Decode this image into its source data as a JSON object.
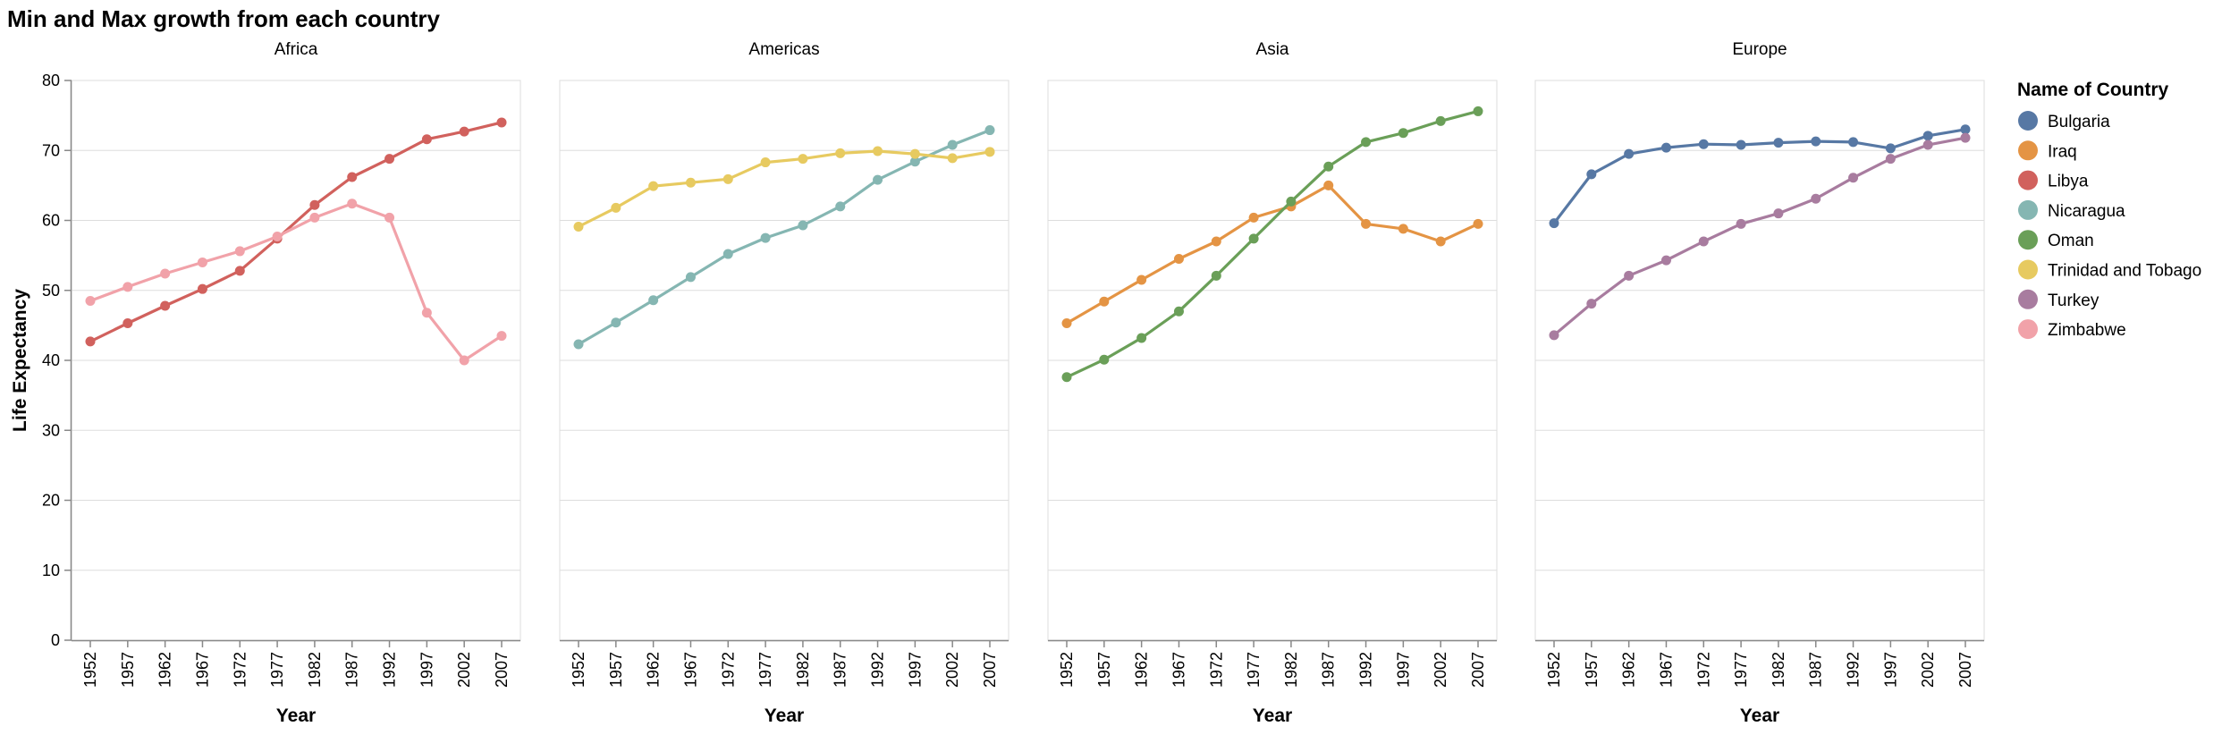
{
  "chart_data": {
    "type": "line",
    "title": "Min and Max growth from each country",
    "xlabel": "Year",
    "ylabel": "Life Expectancy",
    "ylim": [
      0,
      80
    ],
    "yticks": [
      "0",
      "10",
      "20",
      "30",
      "40",
      "50",
      "60",
      "70",
      "80"
    ],
    "x": [
      "1952",
      "1957",
      "1962",
      "1967",
      "1972",
      "1977",
      "1982",
      "1987",
      "1992",
      "1997",
      "2002",
      "2007"
    ],
    "grid": true,
    "legend": {
      "title": "Name of Country",
      "position": "right",
      "items": [
        {
          "name": "Bulgaria",
          "color": "#5778a4"
        },
        {
          "name": "Iraq",
          "color": "#e49444"
        },
        {
          "name": "Libya",
          "color": "#d1615d"
        },
        {
          "name": "Nicaragua",
          "color": "#85b6b2"
        },
        {
          "name": "Oman",
          "color": "#6a9f58"
        },
        {
          "name": "Trinidad and Tobago",
          "color": "#e7ca60"
        },
        {
          "name": "Turkey",
          "color": "#a87c9f"
        },
        {
          "name": "Zimbabwe",
          "color": "#f1a2a9"
        }
      ]
    },
    "facets": [
      {
        "name": "Africa",
        "series": [
          {
            "name": "Libya",
            "color": "#d1615d",
            "values": [
              42.7,
              45.3,
              47.8,
              50.2,
              52.8,
              57.4,
              62.2,
              66.2,
              68.8,
              71.6,
              72.7,
              74.0
            ]
          },
          {
            "name": "Zimbabwe",
            "color": "#f1a2a9",
            "values": [
              48.5,
              50.5,
              52.4,
              54.0,
              55.6,
              57.7,
              60.4,
              62.4,
              60.4,
              46.8,
              40.0,
              43.5
            ]
          }
        ]
      },
      {
        "name": "Americas",
        "series": [
          {
            "name": "Nicaragua",
            "color": "#85b6b2",
            "values": [
              42.3,
              45.4,
              48.6,
              51.9,
              55.2,
              57.5,
              59.3,
              62.0,
              65.8,
              68.4,
              70.8,
              72.9
            ]
          },
          {
            "name": "Trinidad and Tobago",
            "color": "#e7ca60",
            "values": [
              59.1,
              61.8,
              64.9,
              65.4,
              65.9,
              68.3,
              68.8,
              69.6,
              69.9,
              69.5,
              68.9,
              69.8
            ]
          }
        ]
      },
      {
        "name": "Asia",
        "series": [
          {
            "name": "Iraq",
            "color": "#e49444",
            "values": [
              45.3,
              48.4,
              51.5,
              54.5,
              57.0,
              60.4,
              62.0,
              65.0,
              59.5,
              58.8,
              57.0,
              59.5
            ]
          },
          {
            "name": "Oman",
            "color": "#6a9f58",
            "values": [
              37.6,
              40.1,
              43.2,
              47.0,
              52.1,
              57.4,
              62.7,
              67.7,
              71.2,
              72.5,
              74.2,
              75.6
            ]
          }
        ]
      },
      {
        "name": "Europe",
        "series": [
          {
            "name": "Bulgaria",
            "color": "#5778a4",
            "values": [
              59.6,
              66.6,
              69.5,
              70.4,
              70.9,
              70.8,
              71.1,
              71.3,
              71.2,
              70.3,
              72.1,
              73.0
            ]
          },
          {
            "name": "Turkey",
            "color": "#a87c9f",
            "values": [
              43.6,
              48.1,
              52.1,
              54.3,
              57.0,
              59.5,
              61.0,
              63.1,
              66.1,
              68.8,
              70.8,
              71.8
            ]
          }
        ]
      }
    ]
  }
}
